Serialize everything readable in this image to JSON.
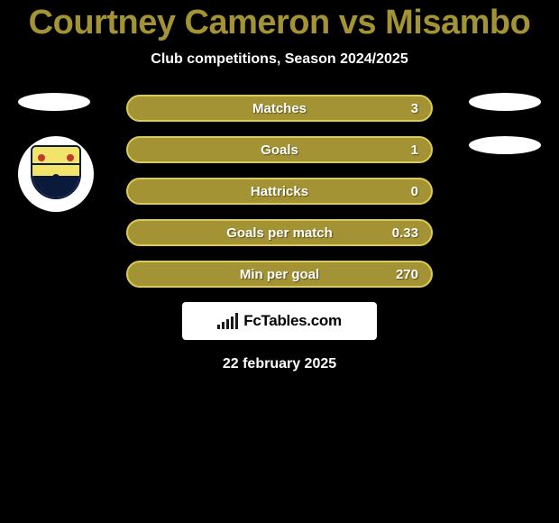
{
  "title": "Courtney Cameron vs Misambo",
  "subtitle": "Club competitions, Season 2024/2025",
  "colors": {
    "accent": "#a39334",
    "row_bg": "#a39334",
    "row_border": "#dccb52",
    "background": "#000000",
    "text": "#ffffff"
  },
  "stats": [
    {
      "label": "Matches",
      "value": "3"
    },
    {
      "label": "Goals",
      "value": "1"
    },
    {
      "label": "Hattricks",
      "value": "0"
    },
    {
      "label": "Goals per match",
      "value": "0.33"
    },
    {
      "label": "Min per goal",
      "value": "270"
    }
  ],
  "watermark": {
    "brand": "FcTables",
    "suffix": ".com"
  },
  "date": "22 february 2025",
  "logo_bar_heights": [
    5,
    8,
    11,
    14,
    18
  ]
}
